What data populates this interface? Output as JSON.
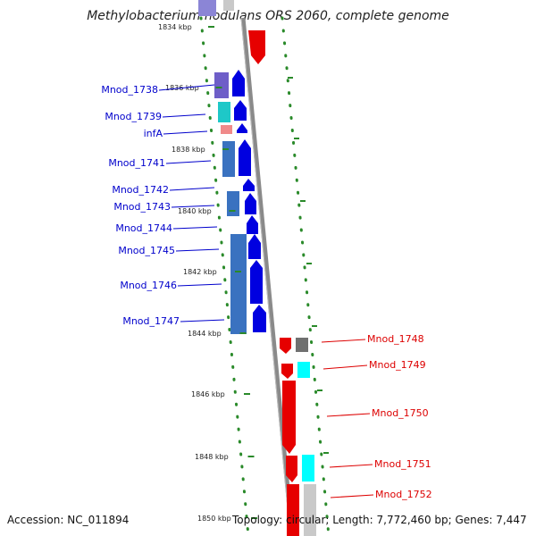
{
  "title": "Methylobacterium nodulans ORS 2060, complete genome",
  "accession": "Accession: NC_011894",
  "topology": "Topology: circular; Length: 7,772,460 bp; Genes: 7,447",
  "colors": {
    "left_label": "#0000cc",
    "right_label": "#dd0000",
    "tick": "#2a8a2a",
    "backbone": "#888888"
  },
  "kbp_marks": [
    {
      "id": "kbp-1834",
      "text": "1834 kbp"
    },
    {
      "id": "kbp-1836",
      "text": "1836 kbp"
    },
    {
      "id": "kbp-1838",
      "text": "1838 kbp"
    },
    {
      "id": "kbp-1840",
      "text": "1840 kbp"
    },
    {
      "id": "kbp-1842",
      "text": "1842 kbp"
    },
    {
      "id": "kbp-1844",
      "text": "1844 kbp"
    },
    {
      "id": "kbp-1846",
      "text": "1846 kbp"
    },
    {
      "id": "kbp-1848",
      "text": "1848 kbp"
    },
    {
      "id": "kbp-1850",
      "text": "1850 kbp"
    }
  ],
  "genes_left": [
    {
      "id": "gene-mnod-1738",
      "label": "Mnod_1738"
    },
    {
      "id": "gene-mnod-1739",
      "label": "Mnod_1739"
    },
    {
      "id": "gene-infa",
      "label": "infA"
    },
    {
      "id": "gene-mnod-1741",
      "label": "Mnod_1741"
    },
    {
      "id": "gene-mnod-1742",
      "label": "Mnod_1742"
    },
    {
      "id": "gene-mnod-1743",
      "label": "Mnod_1743"
    },
    {
      "id": "gene-mnod-1744",
      "label": "Mnod_1744"
    },
    {
      "id": "gene-mnod-1745",
      "label": "Mnod_1745"
    },
    {
      "id": "gene-mnod-1746",
      "label": "Mnod_1746"
    },
    {
      "id": "gene-mnod-1747",
      "label": "Mnod_1747"
    }
  ],
  "genes_right": [
    {
      "id": "gene-mnod-1748",
      "label": "Mnod_1748"
    },
    {
      "id": "gene-mnod-1749",
      "label": "Mnod_1749"
    },
    {
      "id": "gene-mnod-1750",
      "label": "Mnod_1750"
    },
    {
      "id": "gene-mnod-1751",
      "label": "Mnod_1751"
    },
    {
      "id": "gene-mnod-1752",
      "label": "Mnod_1752"
    }
  ]
}
